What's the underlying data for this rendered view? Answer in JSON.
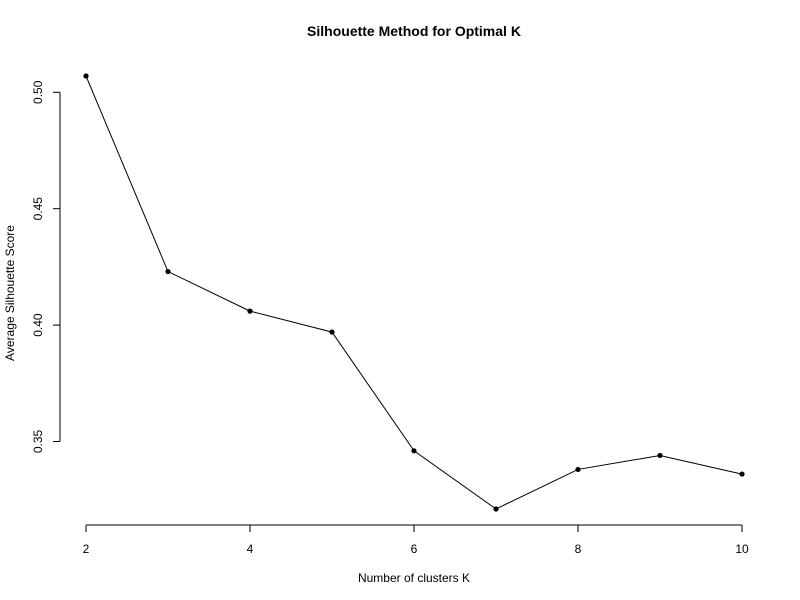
{
  "chart_data": {
    "type": "line",
    "title": "Silhouette Method for Optimal K",
    "xlabel": "Number of clusters K",
    "ylabel": "Average Silhouette Score",
    "x": [
      2,
      3,
      4,
      5,
      6,
      7,
      8,
      9,
      10
    ],
    "series": [
      {
        "values": [
          0.507,
          0.423,
          0.406,
          0.397,
          0.346,
          0.321,
          0.338,
          0.344,
          0.336
        ]
      }
    ],
    "xlim": [
      2,
      10
    ],
    "ylim": [
      0.321,
      0.507
    ],
    "x_ticks": [
      2,
      4,
      6,
      8,
      10
    ],
    "y_ticks": [
      0.35,
      0.4,
      0.45,
      0.5
    ],
    "y_tick_labels": [
      "0.35",
      "0.40",
      "0.45",
      "0.50"
    ],
    "grid": false,
    "markers": "filled-circle",
    "line_color": "#000000"
  }
}
